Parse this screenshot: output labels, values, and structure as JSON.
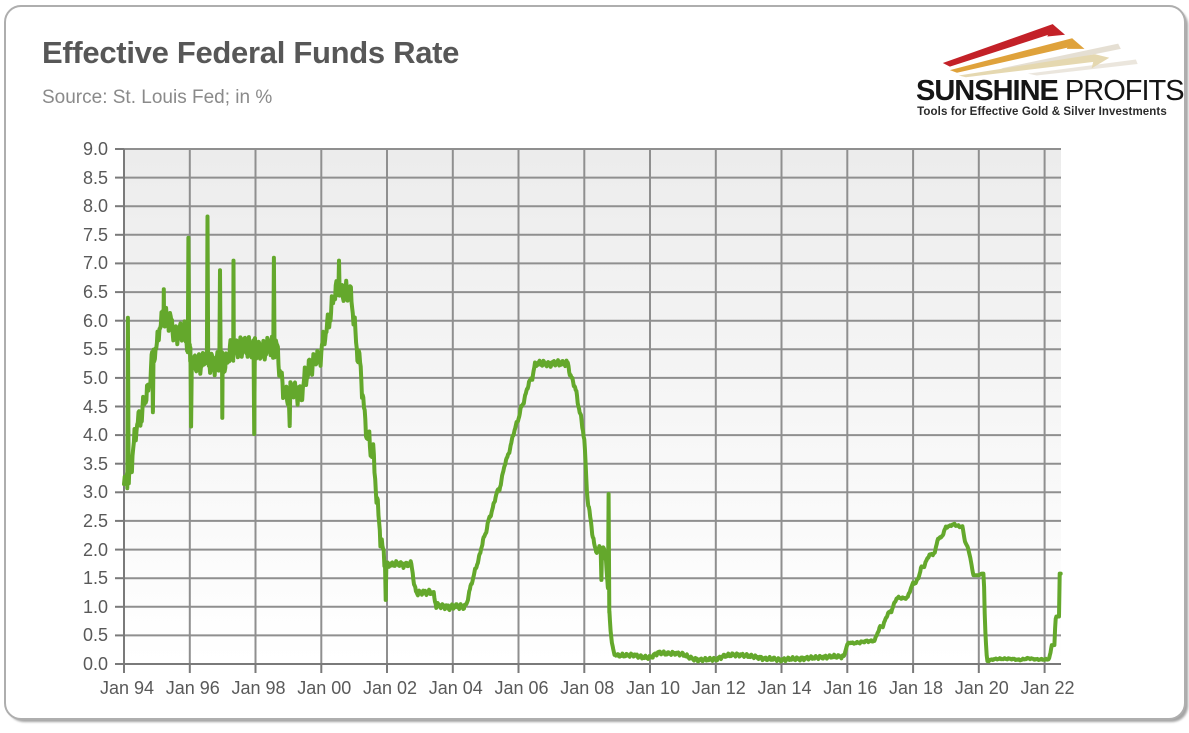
{
  "logo": {
    "name_bold": "SUNSHINE",
    "name_light": " PROFITS",
    "tagline": "Tools for Effective Gold & Silver Investments",
    "ray_colors": [
      "#c32128",
      "#dfa23b",
      "#e5d8b0"
    ],
    "ray_shadow_colors": [
      "#cfc5ae",
      "#ddd6c6"
    ]
  },
  "chart_data": {
    "type": "line",
    "title": "Effective Federal Funds Rate",
    "source_note": "Source: St. Louis Fed; in %",
    "series_name": "Effective Federal Funds Rate (daily, %)",
    "line_color": "#64a82c",
    "grid_color": "#8f8f8f",
    "axis_color": "#7a7a7a",
    "plot_bg_top": "#ececec",
    "plot_bg_mid": "#f6f6f6",
    "plot_bg_bottom": "#ffffff",
    "ylim": [
      0,
      9
    ],
    "y_tick_step": 0.5,
    "x_range": [
      1994,
      2022.5
    ],
    "grid": true,
    "legend": "none",
    "y_tick_labels": [
      "9.0",
      "8.5",
      "8.0",
      "7.5",
      "7.0",
      "6.5",
      "6.0",
      "5.5",
      "5.0",
      "4.5",
      "4.0",
      "3.5",
      "3.0",
      "2.5",
      "2.0",
      "1.5",
      "1.0",
      "0.5",
      "0.0"
    ],
    "x_ticks": [
      {
        "t": 1994,
        "label": "Jan 94"
      },
      {
        "t": 1996,
        "label": "Jan 96"
      },
      {
        "t": 1998,
        "label": "Jan 98"
      },
      {
        "t": 2000,
        "label": "Jan 00"
      },
      {
        "t": 2002,
        "label": "Jan 02"
      },
      {
        "t": 2004,
        "label": "Jan 04"
      },
      {
        "t": 2006,
        "label": "Jan 06"
      },
      {
        "t": 2008,
        "label": "Jan 08"
      },
      {
        "t": 2010,
        "label": "Jan 10"
      },
      {
        "t": 2012,
        "label": "Jan 12"
      },
      {
        "t": 2014,
        "label": "Jan 14"
      },
      {
        "t": 2016,
        "label": "Jan 16"
      },
      {
        "t": 2018,
        "label": "Jan 18"
      },
      {
        "t": 2020,
        "label": "Jan 20"
      },
      {
        "t": 2022,
        "label": "Jan 22"
      }
    ],
    "points": [
      [
        1994.0,
        3.05
      ],
      [
        1994.083,
        3.25
      ],
      [
        1994.167,
        3.34
      ],
      [
        1994.25,
        3.56
      ],
      [
        1994.333,
        4.01
      ],
      [
        1994.417,
        4.25
      ],
      [
        1994.5,
        4.26
      ],
      [
        1994.583,
        4.47
      ],
      [
        1994.667,
        4.73
      ],
      [
        1994.75,
        4.76
      ],
      [
        1994.833,
        5.29
      ],
      [
        1994.917,
        5.45
      ],
      [
        1995.0,
        5.53
      ],
      [
        1995.083,
        5.92
      ],
      [
        1995.167,
        5.98
      ],
      [
        1995.25,
        6.05
      ],
      [
        1995.333,
        6.01
      ],
      [
        1995.417,
        6.0
      ],
      [
        1995.5,
        5.85
      ],
      [
        1995.583,
        5.74
      ],
      [
        1995.667,
        5.8
      ],
      [
        1995.75,
        5.76
      ],
      [
        1995.833,
        5.8
      ],
      [
        1995.917,
        5.6
      ],
      [
        1996.0,
        5.56
      ],
      [
        1996.083,
        5.22
      ],
      [
        1996.167,
        5.31
      ],
      [
        1996.25,
        5.22
      ],
      [
        1996.333,
        5.24
      ],
      [
        1996.417,
        5.27
      ],
      [
        1996.5,
        5.4
      ],
      [
        1996.583,
        5.22
      ],
      [
        1996.667,
        5.3
      ],
      [
        1996.75,
        5.24
      ],
      [
        1996.833,
        5.31
      ],
      [
        1996.917,
        5.29
      ],
      [
        1997.0,
        5.25
      ],
      [
        1997.083,
        5.19
      ],
      [
        1997.167,
        5.39
      ],
      [
        1997.25,
        5.51
      ],
      [
        1997.333,
        5.5
      ],
      [
        1997.417,
        5.56
      ],
      [
        1997.5,
        5.52
      ],
      [
        1997.583,
        5.54
      ],
      [
        1997.667,
        5.54
      ],
      [
        1997.75,
        5.5
      ],
      [
        1997.833,
        5.52
      ],
      [
        1997.917,
        5.5
      ],
      [
        1998.0,
        5.56
      ],
      [
        1998.083,
        5.51
      ],
      [
        1998.167,
        5.49
      ],
      [
        1998.25,
        5.45
      ],
      [
        1998.333,
        5.49
      ],
      [
        1998.417,
        5.56
      ],
      [
        1998.5,
        5.54
      ],
      [
        1998.583,
        5.55
      ],
      [
        1998.667,
        5.51
      ],
      [
        1998.75,
        5.07
      ],
      [
        1998.833,
        4.83
      ],
      [
        1998.917,
        4.68
      ],
      [
        1999.0,
        4.63
      ],
      [
        1999.083,
        4.76
      ],
      [
        1999.167,
        4.81
      ],
      [
        1999.25,
        4.74
      ],
      [
        1999.333,
        4.74
      ],
      [
        1999.417,
        4.76
      ],
      [
        1999.5,
        4.99
      ],
      [
        1999.583,
        5.07
      ],
      [
        1999.667,
        5.22
      ],
      [
        1999.75,
        5.2
      ],
      [
        1999.833,
        5.42
      ],
      [
        1999.917,
        5.3
      ],
      [
        2000.0,
        5.45
      ],
      [
        2000.083,
        5.73
      ],
      [
        2000.167,
        5.85
      ],
      [
        2000.25,
        6.02
      ],
      [
        2000.333,
        6.27
      ],
      [
        2000.417,
        6.53
      ],
      [
        2000.5,
        6.54
      ],
      [
        2000.583,
        6.5
      ],
      [
        2000.667,
        6.52
      ],
      [
        2000.75,
        6.51
      ],
      [
        2000.833,
        6.51
      ],
      [
        2000.917,
        6.4
      ],
      [
        2001.0,
        5.98
      ],
      [
        2001.083,
        5.49
      ],
      [
        2001.167,
        5.31
      ],
      [
        2001.25,
        4.8
      ],
      [
        2001.333,
        4.21
      ],
      [
        2001.417,
        3.97
      ],
      [
        2001.5,
        3.77
      ],
      [
        2001.583,
        3.65
      ],
      [
        2001.667,
        3.07
      ],
      [
        2001.75,
        2.49
      ],
      [
        2001.833,
        2.09
      ],
      [
        2001.917,
        1.82
      ],
      [
        2002.0,
        1.73
      ],
      [
        2002.083,
        1.74
      ],
      [
        2002.167,
        1.73
      ],
      [
        2002.25,
        1.75
      ],
      [
        2002.333,
        1.75
      ],
      [
        2002.417,
        1.75
      ],
      [
        2002.5,
        1.73
      ],
      [
        2002.583,
        1.74
      ],
      [
        2002.667,
        1.75
      ],
      [
        2002.75,
        1.75
      ],
      [
        2002.833,
        1.34
      ],
      [
        2002.917,
        1.24
      ],
      [
        2003.0,
        1.24
      ],
      [
        2003.083,
        1.26
      ],
      [
        2003.167,
        1.25
      ],
      [
        2003.25,
        1.26
      ],
      [
        2003.333,
        1.26
      ],
      [
        2003.417,
        1.22
      ],
      [
        2003.5,
        1.01
      ],
      [
        2003.583,
        1.03
      ],
      [
        2003.667,
        1.01
      ],
      [
        2003.75,
        1.01
      ],
      [
        2003.833,
        1.0
      ],
      [
        2003.917,
        0.98
      ],
      [
        2004.0,
        1.0
      ],
      [
        2004.083,
        1.01
      ],
      [
        2004.167,
        1.0
      ],
      [
        2004.25,
        1.0
      ],
      [
        2004.333,
        1.0
      ],
      [
        2004.417,
        1.03
      ],
      [
        2004.5,
        1.26
      ],
      [
        2004.583,
        1.43
      ],
      [
        2004.667,
        1.61
      ],
      [
        2004.75,
        1.76
      ],
      [
        2004.833,
        1.93
      ],
      [
        2004.917,
        2.16
      ],
      [
        2005.0,
        2.28
      ],
      [
        2005.083,
        2.5
      ],
      [
        2005.167,
        2.63
      ],
      [
        2005.25,
        2.79
      ],
      [
        2005.333,
        3.0
      ],
      [
        2005.417,
        3.04
      ],
      [
        2005.5,
        3.26
      ],
      [
        2005.583,
        3.5
      ],
      [
        2005.667,
        3.62
      ],
      [
        2005.75,
        3.78
      ],
      [
        2005.833,
        4.0
      ],
      [
        2005.917,
        4.16
      ],
      [
        2006.0,
        4.29
      ],
      [
        2006.083,
        4.49
      ],
      [
        2006.167,
        4.59
      ],
      [
        2006.25,
        4.79
      ],
      [
        2006.333,
        4.94
      ],
      [
        2006.417,
        4.99
      ],
      [
        2006.5,
        5.24
      ],
      [
        2006.583,
        5.25
      ],
      [
        2006.667,
        5.25
      ],
      [
        2006.75,
        5.25
      ],
      [
        2006.833,
        5.25
      ],
      [
        2006.917,
        5.24
      ],
      [
        2007.0,
        5.25
      ],
      [
        2007.083,
        5.26
      ],
      [
        2007.167,
        5.26
      ],
      [
        2007.25,
        5.25
      ],
      [
        2007.333,
        5.25
      ],
      [
        2007.417,
        5.25
      ],
      [
        2007.5,
        5.26
      ],
      [
        2007.583,
        5.02
      ],
      [
        2007.667,
        4.94
      ],
      [
        2007.75,
        4.76
      ],
      [
        2007.833,
        4.49
      ],
      [
        2007.917,
        4.24
      ],
      [
        2008.0,
        3.94
      ],
      [
        2008.083,
        2.98
      ],
      [
        2008.167,
        2.61
      ],
      [
        2008.25,
        2.28
      ],
      [
        2008.333,
        1.98
      ],
      [
        2008.417,
        2.0
      ],
      [
        2008.5,
        2.01
      ],
      [
        2008.583,
        2.0
      ],
      [
        2008.667,
        1.81
      ],
      [
        2008.75,
        0.97
      ],
      [
        2008.833,
        0.39
      ],
      [
        2008.917,
        0.16
      ],
      [
        2009.0,
        0.15
      ],
      [
        2009.25,
        0.15
      ],
      [
        2009.5,
        0.16
      ],
      [
        2009.75,
        0.12
      ],
      [
        2010.0,
        0.11
      ],
      [
        2010.25,
        0.2
      ],
      [
        2010.5,
        0.18
      ],
      [
        2010.75,
        0.19
      ],
      [
        2011.0,
        0.17
      ],
      [
        2011.25,
        0.1
      ],
      [
        2011.5,
        0.07
      ],
      [
        2011.75,
        0.08
      ],
      [
        2012.0,
        0.08
      ],
      [
        2012.25,
        0.14
      ],
      [
        2012.5,
        0.16
      ],
      [
        2012.75,
        0.16
      ],
      [
        2013.0,
        0.14
      ],
      [
        2013.25,
        0.12
      ],
      [
        2013.5,
        0.09
      ],
      [
        2013.75,
        0.09
      ],
      [
        2014.0,
        0.07
      ],
      [
        2014.25,
        0.09
      ],
      [
        2014.5,
        0.09
      ],
      [
        2014.75,
        0.1
      ],
      [
        2015.0,
        0.11
      ],
      [
        2015.25,
        0.12
      ],
      [
        2015.5,
        0.13
      ],
      [
        2015.75,
        0.13
      ],
      [
        2015.9,
        0.13
      ],
      [
        2015.95,
        0.24
      ],
      [
        2016.0,
        0.34
      ],
      [
        2016.083,
        0.38
      ],
      [
        2016.167,
        0.36
      ],
      [
        2016.25,
        0.37
      ],
      [
        2016.333,
        0.37
      ],
      [
        2016.417,
        0.38
      ],
      [
        2016.5,
        0.39
      ],
      [
        2016.583,
        0.4
      ],
      [
        2016.667,
        0.4
      ],
      [
        2016.75,
        0.4
      ],
      [
        2016.833,
        0.41
      ],
      [
        2016.917,
        0.54
      ],
      [
        2017.0,
        0.65
      ],
      [
        2017.083,
        0.66
      ],
      [
        2017.167,
        0.79
      ],
      [
        2017.25,
        0.9
      ],
      [
        2017.333,
        0.91
      ],
      [
        2017.417,
        1.04
      ],
      [
        2017.5,
        1.15
      ],
      [
        2017.583,
        1.16
      ],
      [
        2017.667,
        1.15
      ],
      [
        2017.75,
        1.15
      ],
      [
        2017.833,
        1.16
      ],
      [
        2017.917,
        1.3
      ],
      [
        2018.0,
        1.41
      ],
      [
        2018.083,
        1.42
      ],
      [
        2018.167,
        1.51
      ],
      [
        2018.25,
        1.69
      ],
      [
        2018.333,
        1.7
      ],
      [
        2018.417,
        1.82
      ],
      [
        2018.5,
        1.91
      ],
      [
        2018.583,
        1.91
      ],
      [
        2018.667,
        1.95
      ],
      [
        2018.75,
        2.19
      ],
      [
        2018.833,
        2.2
      ],
      [
        2018.917,
        2.27
      ],
      [
        2019.0,
        2.4
      ],
      [
        2019.083,
        2.4
      ],
      [
        2019.167,
        2.43
      ],
      [
        2019.25,
        2.44
      ],
      [
        2019.333,
        2.42
      ],
      [
        2019.417,
        2.4
      ],
      [
        2019.5,
        2.4
      ],
      [
        2019.583,
        2.13
      ],
      [
        2019.667,
        2.04
      ],
      [
        2019.75,
        1.83
      ],
      [
        2019.833,
        1.55
      ],
      [
        2019.917,
        1.55
      ],
      [
        2020.0,
        1.55
      ],
      [
        2020.083,
        1.58
      ],
      [
        2020.15,
        1.58
      ],
      [
        2020.19,
        0.65
      ],
      [
        2020.25,
        0.05
      ],
      [
        2020.417,
        0.08
      ],
      [
        2020.583,
        0.09
      ],
      [
        2020.75,
        0.09
      ],
      [
        2020.917,
        0.09
      ],
      [
        2021.0,
        0.09
      ],
      [
        2021.25,
        0.07
      ],
      [
        2021.5,
        0.1
      ],
      [
        2021.75,
        0.08
      ],
      [
        2022.0,
        0.08
      ],
      [
        2022.13,
        0.08
      ],
      [
        2022.18,
        0.2
      ],
      [
        2022.22,
        0.33
      ],
      [
        2022.3,
        0.33
      ],
      [
        2022.33,
        0.77
      ],
      [
        2022.36,
        0.83
      ],
      [
        2022.44,
        0.83
      ],
      [
        2022.46,
        1.58
      ],
      [
        2022.49,
        1.58
      ]
    ],
    "spikes_up": [
      [
        1994.12,
        6.05
      ],
      [
        1995.21,
        6.55
      ],
      [
        1995.96,
        7.45
      ],
      [
        1996.54,
        7.82
      ],
      [
        1996.92,
        6.88
      ],
      [
        1997.33,
        7.05
      ],
      [
        1998.56,
        7.1
      ],
      [
        2000.54,
        7.05
      ],
      [
        2008.74,
        2.97
      ]
    ],
    "spikes_down": [
      [
        1994.88,
        4.4
      ],
      [
        1996.04,
        4.15
      ],
      [
        1996.99,
        4.3
      ],
      [
        1997.96,
        4.02
      ],
      [
        1999.04,
        4.16
      ],
      [
        2001.96,
        1.12
      ],
      [
        2008.52,
        1.47
      ]
    ],
    "noise_bands": [
      {
        "from": 1994.0,
        "to": 2001.92,
        "amp": 0.21
      },
      {
        "from": 2001.92,
        "to": 2004.4,
        "amp": 0.05
      },
      {
        "from": 2004.4,
        "to": 2006.5,
        "amp": 0.035
      },
      {
        "from": 2006.5,
        "to": 2007.7,
        "amp": 0.055
      },
      {
        "from": 2007.7,
        "to": 2008.8,
        "amp": 0.06
      },
      {
        "from": 2008.95,
        "to": 2015.9,
        "amp": 0.032
      },
      {
        "from": 2016.0,
        "to": 2019.55,
        "amp": 0.018
      },
      {
        "from": 2020.3,
        "to": 2022.1,
        "amp": 0.012
      }
    ]
  }
}
